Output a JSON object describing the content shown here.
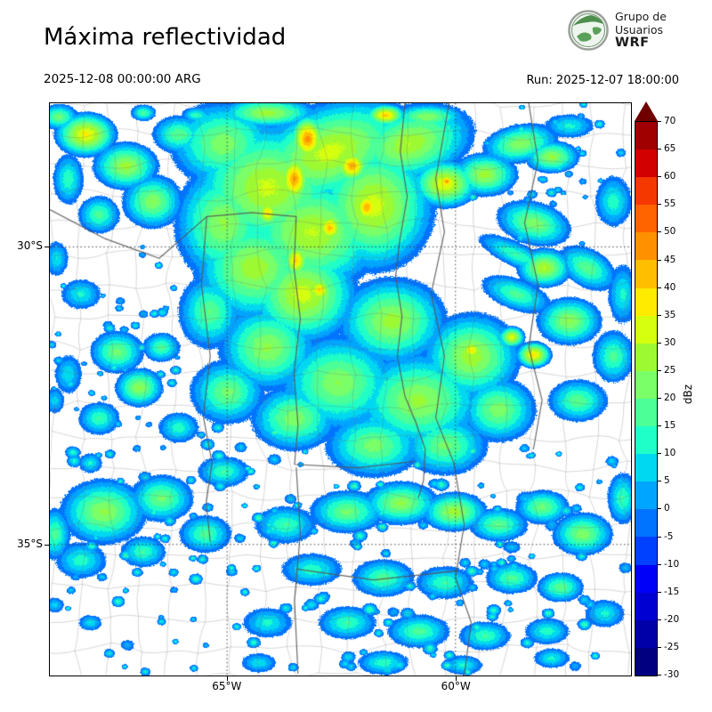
{
  "header": {
    "title": "Máxima reflectividad",
    "valid_time": "2025-12-08 00:00:00 ARG",
    "run_label": "Run: 2025-12-07 18:00:00",
    "logo": {
      "line1": "Grupo de",
      "line2": "Usuarios",
      "line3": "WRF"
    }
  },
  "chart_data": {
    "type": "heatmap",
    "title": "Máxima reflectividad",
    "units": "dBz",
    "colorbar": {
      "label": "dBz",
      "min": -30,
      "max": 70,
      "step": 5,
      "over_color": "#700000",
      "colors": [
        "#000080",
        "#0000a8",
        "#0000d2",
        "#0000fa",
        "#0041ff",
        "#0073ff",
        "#00a5ff",
        "#00d7f0",
        "#1fffc8",
        "#4cff96",
        "#7aff69",
        "#9dfa32",
        "#d5ff0f",
        "#ffeb00",
        "#ffbe00",
        "#ff9100",
        "#ff6400",
        "#f53800",
        "#d20000",
        "#a00000"
      ]
    },
    "axes": {
      "lat_ticks": [
        {
          "label": "30°S",
          "frac": 0.251
        },
        {
          "label": "35°S",
          "frac": 0.771
        }
      ],
      "lon_ticks": [
        {
          "label": "65°W",
          "frac": 0.305
        },
        {
          "label": "60°W",
          "frac": 0.698
        }
      ]
    },
    "field": {
      "format": [
        "u",
        "v",
        "rx_px",
        "ry_px",
        "peak_dbz",
        "rot_deg"
      ],
      "display_min_dbz": -5,
      "blobs": [
        [
          0.374,
          0.147,
          70,
          60,
          32,
          0
        ],
        [
          0.481,
          0.085,
          80,
          45,
          33,
          -20
        ],
        [
          0.45,
          0.225,
          65,
          55,
          31,
          0
        ],
        [
          0.351,
          0.287,
          55,
          50,
          29,
          0
        ],
        [
          0.435,
          0.333,
          50,
          45,
          33,
          0
        ],
        [
          0.298,
          0.209,
          45,
          55,
          26,
          0
        ],
        [
          0.557,
          0.178,
          55,
          60,
          33,
          0
        ],
        [
          0.618,
          0.07,
          60,
          35,
          30,
          -15
        ],
        [
          0.298,
          0.07,
          50,
          40,
          24,
          0
        ],
        [
          0.443,
          0.062,
          16,
          22,
          49,
          0
        ],
        [
          0.42,
          0.132,
          15,
          25,
          47,
          0
        ],
        [
          0.519,
          0.109,
          16,
          16,
          46,
          0
        ],
        [
          0.545,
          0.181,
          14,
          18,
          45,
          0
        ],
        [
          0.481,
          0.217,
          14,
          16,
          43,
          0
        ],
        [
          0.423,
          0.274,
          13,
          18,
          41,
          0
        ],
        [
          0.463,
          0.326,
          14,
          14,
          40,
          0
        ],
        [
          0.577,
          0.02,
          18,
          10,
          42,
          0
        ],
        [
          0.374,
          0.191,
          12,
          14,
          40,
          0
        ],
        [
          0.679,
          0.14,
          30,
          22,
          36,
          0
        ],
        [
          0.682,
          0.136,
          10,
          8,
          46,
          0
        ],
        [
          0.748,
          0.124,
          30,
          20,
          28,
          0
        ],
        [
          0.809,
          0.07,
          35,
          18,
          25,
          -10
        ],
        [
          0.863,
          0.093,
          25,
          15,
          27,
          0
        ],
        [
          0.832,
          0.209,
          35,
          20,
          24,
          15
        ],
        [
          0.924,
          0.287,
          30,
          18,
          20,
          30
        ],
        [
          0.893,
          0.039,
          25,
          12,
          12,
          0
        ],
        [
          0.969,
          0.171,
          18,
          25,
          14,
          0
        ],
        [
          0.061,
          0.054,
          28,
          20,
          37,
          0
        ],
        [
          0.058,
          0.051,
          8,
          6,
          41,
          0
        ],
        [
          0.13,
          0.109,
          30,
          22,
          28,
          0
        ],
        [
          0.176,
          0.171,
          28,
          25,
          25,
          0
        ],
        [
          0.084,
          0.194,
          20,
          18,
          18,
          0
        ],
        [
          0.031,
          0.132,
          15,
          25,
          15,
          0
        ],
        [
          0.221,
          0.054,
          25,
          18,
          20,
          0
        ],
        [
          0.015,
          0.023,
          18,
          12,
          22,
          0
        ],
        [
          0.053,
          0.333,
          20,
          15,
          12,
          0
        ],
        [
          0.115,
          0.434,
          25,
          20,
          22,
          0
        ],
        [
          0.153,
          0.496,
          22,
          18,
          26,
          0
        ],
        [
          0.084,
          0.55,
          20,
          16,
          16,
          0
        ],
        [
          0.031,
          0.473,
          14,
          20,
          10,
          0
        ],
        [
          0.191,
          0.426,
          18,
          14,
          18,
          0
        ],
        [
          0.221,
          0.566,
          20,
          15,
          14,
          0
        ],
        [
          0.374,
          0.426,
          45,
          40,
          26,
          0
        ],
        [
          0.496,
          0.488,
          55,
          45,
          25,
          0
        ],
        [
          0.634,
          0.519,
          60,
          45,
          27,
          0
        ],
        [
          0.725,
          0.442,
          45,
          40,
          29,
          0
        ],
        [
          0.588,
          0.38,
          50,
          40,
          28,
          0
        ],
        [
          0.305,
          0.504,
          35,
          30,
          22,
          0
        ],
        [
          0.42,
          0.55,
          40,
          30,
          24,
          0
        ],
        [
          0.557,
          0.597,
          45,
          30,
          23,
          0
        ],
        [
          0.679,
          0.597,
          40,
          28,
          22,
          0
        ],
        [
          0.771,
          0.535,
          35,
          30,
          24,
          0
        ],
        [
          0.275,
          0.364,
          30,
          35,
          20,
          0
        ],
        [
          0.725,
          0.431,
          14,
          12,
          38,
          0
        ],
        [
          0.832,
          0.439,
          16,
          12,
          39,
          0
        ],
        [
          0.794,
          0.408,
          12,
          10,
          35,
          0
        ],
        [
          0.85,
          0.287,
          25,
          18,
          30,
          0
        ],
        [
          0.893,
          0.38,
          30,
          22,
          26,
          0
        ],
        [
          0.969,
          0.442,
          20,
          25,
          18,
          0
        ],
        [
          0.908,
          0.519,
          28,
          20,
          20,
          0
        ],
        [
          0.802,
          0.333,
          35,
          15,
          18,
          20
        ],
        [
          0.985,
          0.333,
          15,
          30,
          12,
          0
        ],
        [
          0.092,
          0.713,
          40,
          30,
          26,
          0
        ],
        [
          0.191,
          0.69,
          30,
          22,
          22,
          0
        ],
        [
          0.053,
          0.798,
          25,
          18,
          14,
          0
        ],
        [
          0.16,
          0.783,
          22,
          15,
          16,
          0
        ],
        [
          0.267,
          0.752,
          25,
          18,
          18,
          0
        ],
        [
          0.405,
          0.736,
          30,
          18,
          16,
          0
        ],
        [
          0.511,
          0.713,
          35,
          20,
          22,
          0
        ],
        [
          0.603,
          0.698,
          35,
          20,
          26,
          0
        ],
        [
          0.695,
          0.713,
          30,
          18,
          28,
          0
        ],
        [
          0.771,
          0.736,
          28,
          16,
          20,
          0
        ],
        [
          0.847,
          0.705,
          25,
          16,
          22,
          0
        ],
        [
          0.916,
          0.752,
          28,
          20,
          24,
          0
        ],
        [
          0.985,
          0.69,
          15,
          25,
          16,
          0
        ],
        [
          0.45,
          0.814,
          30,
          16,
          14,
          0
        ],
        [
          0.573,
          0.829,
          30,
          18,
          18,
          0
        ],
        [
          0.679,
          0.837,
          28,
          16,
          16,
          0
        ],
        [
          0.794,
          0.829,
          25,
          15,
          18,
          0
        ],
        [
          0.878,
          0.845,
          22,
          14,
          20,
          0
        ],
        [
          0.374,
          0.907,
          25,
          15,
          12,
          0
        ],
        [
          0.511,
          0.907,
          28,
          16,
          16,
          0
        ],
        [
          0.634,
          0.922,
          30,
          16,
          18,
          0
        ],
        [
          0.748,
          0.93,
          25,
          14,
          16,
          0
        ],
        [
          0.855,
          0.922,
          22,
          13,
          14,
          0
        ],
        [
          0.954,
          0.891,
          20,
          14,
          12,
          0
        ],
        [
          0.573,
          0.977,
          25,
          12,
          14,
          0
        ],
        [
          0.71,
          0.981,
          20,
          10,
          12,
          0
        ],
        [
          0.359,
          0.977,
          18,
          10,
          10,
          0
        ],
        [
          0.863,
          0.969,
          18,
          10,
          12,
          0
        ],
        [
          0.817,
          0.69,
          10,
          8,
          6,
          0
        ],
        [
          0.863,
          0.736,
          8,
          8,
          5,
          0
        ],
        [
          0.794,
          0.775,
          10,
          7,
          6,
          0
        ],
        [
          0.802,
          0.264,
          40,
          12,
          16,
          25
        ],
        [
          0.011,
          0.271,
          12,
          18,
          10,
          0
        ],
        [
          0.252,
          0.02,
          15,
          8,
          15,
          0
        ],
        [
          0.16,
          0.016,
          12,
          8,
          18,
          0
        ],
        [
          0.374,
          0.016,
          45,
          14,
          28,
          0
        ],
        [
          0.649,
          0.023,
          35,
          12,
          25,
          0
        ],
        [
          0.008,
          0.752,
          15,
          25,
          18,
          0
        ],
        [
          0.298,
          0.643,
          25,
          15,
          16,
          0
        ],
        [
          0.069,
          0.628,
          12,
          10,
          12,
          0
        ],
        [
          0.008,
          0.876,
          10,
          8,
          8,
          0
        ],
        [
          0.069,
          0.907,
          12,
          8,
          10,
          0
        ],
        [
          0.008,
          0.519,
          10,
          14,
          8,
          0
        ]
      ],
      "speckle_groups": [
        {
          "seed": 7,
          "count": 150,
          "u": [
            0.03,
            0.99
          ],
          "v": [
            0.6,
            0.995
          ],
          "dbz": [
            4,
            16
          ],
          "r": [
            3,
            8
          ]
        },
        {
          "seed": 3,
          "count": 45,
          "u": [
            0.0,
            0.22
          ],
          "v": [
            0.25,
            0.62
          ],
          "dbz": [
            4,
            14
          ],
          "r": [
            3,
            6
          ]
        },
        {
          "seed": 11,
          "count": 35,
          "u": [
            0.7,
            0.99
          ],
          "v": [
            0.0,
            0.25
          ],
          "dbz": [
            4,
            14
          ],
          "r": [
            3,
            6
          ]
        },
        {
          "seed": 5,
          "count": 40,
          "u": [
            0.25,
            0.75
          ],
          "v": [
            0.55,
            0.75
          ],
          "dbz": [
            6,
            18
          ],
          "r": [
            3,
            8
          ]
        }
      ]
    },
    "map_overlays": {
      "graticule_color": "#333333",
      "county_line_color": "rgba(110,110,110,0.45)",
      "border_line_color": "rgba(85,85,85,0.9)",
      "county_grid": {
        "spacing": 34,
        "jitter": 13,
        "seed": 42
      },
      "border_lines": [
        [
          [
            0.687,
            0.0
          ],
          [
            0.664,
            0.132
          ],
          [
            0.679,
            0.225
          ],
          [
            0.656,
            0.333
          ],
          [
            0.679,
            0.442
          ],
          [
            0.664,
            0.55
          ],
          [
            0.695,
            0.628
          ],
          [
            0.713,
            0.736
          ],
          [
            0.698,
            0.829
          ],
          [
            0.725,
            0.907
          ],
          [
            0.713,
            1.0
          ]
        ],
        [
          [
            0.611,
            0.0
          ],
          [
            0.603,
            0.085
          ],
          [
            0.615,
            0.163
          ],
          [
            0.602,
            0.24
          ],
          [
            0.595,
            0.302
          ],
          [
            0.606,
            0.372
          ],
          [
            0.598,
            0.442
          ],
          [
            0.611,
            0.512
          ],
          [
            0.63,
            0.558
          ],
          [
            0.646,
            0.605
          ],
          [
            0.643,
            0.659
          ],
          [
            0.634,
            0.69
          ]
        ],
        [
          [
            0.27,
            0.198
          ],
          [
            0.348,
            0.191
          ],
          [
            0.424,
            0.198
          ],
          [
            0.42,
            0.287
          ],
          [
            0.431,
            0.377
          ],
          [
            0.42,
            0.47
          ],
          [
            0.427,
            0.563
          ],
          [
            0.421,
            0.631
          ],
          [
            0.53,
            0.637
          ],
          [
            0.627,
            0.626
          ]
        ],
        [
          [
            0.27,
            0.198
          ],
          [
            0.261,
            0.318
          ],
          [
            0.276,
            0.442
          ],
          [
            0.264,
            0.547
          ],
          [
            0.279,
            0.628
          ],
          [
            0.269,
            0.698
          ],
          [
            0.276,
            0.767
          ]
        ],
        [
          [
            0.0,
            0.186
          ],
          [
            0.096,
            0.237
          ],
          [
            0.188,
            0.271
          ],
          [
            0.27,
            0.198
          ]
        ],
        [
          [
            0.424,
            0.636
          ],
          [
            0.431,
            0.752
          ],
          [
            0.421,
            0.868
          ],
          [
            0.427,
            0.997
          ]
        ],
        [
          [
            0.424,
            0.814
          ],
          [
            0.557,
            0.833
          ],
          [
            0.702,
            0.817
          ]
        ],
        [
          [
            0.824,
            0.0
          ],
          [
            0.84,
            0.101
          ],
          [
            0.817,
            0.209
          ],
          [
            0.84,
            0.318
          ],
          [
            0.824,
            0.426
          ],
          [
            0.847,
            0.519
          ],
          [
            0.832,
            0.605
          ]
        ]
      ]
    }
  }
}
